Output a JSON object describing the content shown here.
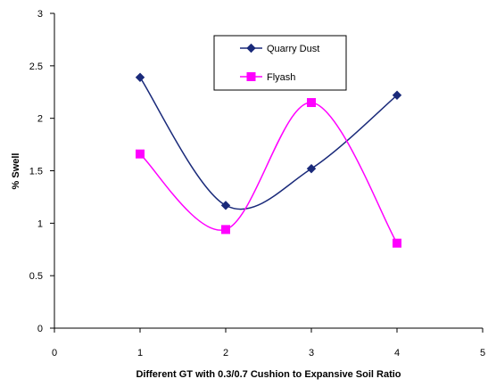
{
  "chart_data": {
    "type": "line",
    "title": "",
    "xlabel": "Different GT with 0.3/0.7 Cushion to Expansive Soil Ratio",
    "ylabel": "% Swell",
    "xlim": [
      0,
      5
    ],
    "ylim": [
      0,
      3
    ],
    "xticks": [
      "0",
      "1",
      "2",
      "3",
      "4",
      "5"
    ],
    "yticks": [
      "0",
      "0.5",
      "1",
      "1.5",
      "2",
      "2.5",
      "3"
    ],
    "grid": false,
    "smooth": true,
    "legend_position": "top-right",
    "series": [
      {
        "name": "Quarry Dust",
        "color": "#1a2a7a",
        "marker": "diamond",
        "x": [
          1,
          2,
          3,
          4
        ],
        "y": [
          2.39,
          1.17,
          1.52,
          2.22
        ]
      },
      {
        "name": "Flyash",
        "color": "#ff00ff",
        "marker": "square",
        "x": [
          1,
          2,
          3,
          4
        ],
        "y": [
          1.66,
          0.94,
          2.15,
          0.81
        ]
      }
    ]
  }
}
